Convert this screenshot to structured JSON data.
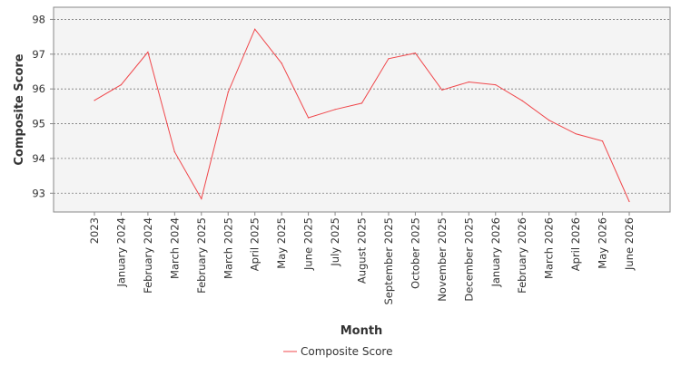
{
  "chart_data": {
    "type": "line",
    "xlabel": "Month",
    "ylabel": "Composite Score",
    "categories": [
      "2023",
      "January 2024",
      "February 2024",
      "March 2024",
      "February 2025",
      "March 2025",
      "April 2025",
      "May 2025",
      "June 2025",
      "July 2025",
      "August 2025",
      "September 2025",
      "October 2025",
      "November 2025",
      "December 2025",
      "January 2026",
      "February 2026",
      "March 2026",
      "April 2026",
      "May 2026",
      "June 2026"
    ],
    "series": [
      {
        "name": "Composite Score",
        "values": [
          95.67,
          96.12,
          97.06,
          94.19,
          92.84,
          95.91,
          97.72,
          96.74,
          95.17,
          95.41,
          95.59,
          96.87,
          97.03,
          95.97,
          96.2,
          96.12,
          95.66,
          95.1,
          94.71,
          94.5,
          92.76
        ]
      }
    ],
    "yticks": [
      93,
      94,
      95,
      96,
      97,
      98
    ],
    "ylim": [
      92.46,
      98.35
    ],
    "grid": true,
    "legend_position": "bottom"
  },
  "colors": {
    "series": "#f0474b",
    "plot_background": "#f4f4f4",
    "grid": "#7a7a7a",
    "frame": "#888888",
    "text": "#333333"
  }
}
